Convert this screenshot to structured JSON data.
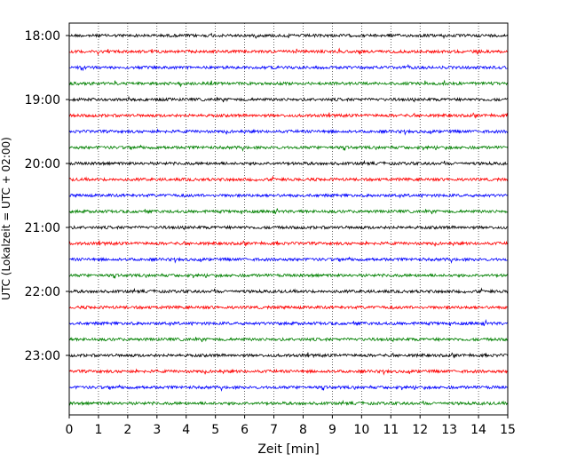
{
  "chart_data": {
    "type": "line",
    "title": "",
    "xlabel": "Zeit  [min]",
    "ylabel": "UTC (Lokalzeit = UTC + 02:00)",
    "xlim": [
      0,
      15
    ],
    "x_ticks": [
      "0",
      "1",
      "2",
      "3",
      "4",
      "5",
      "6",
      "7",
      "8",
      "9",
      "10",
      "11",
      "12",
      "13",
      "14",
      "15"
    ],
    "y_ticks": [
      "18:00",
      "19:00",
      "20:00",
      "21:00",
      "22:00",
      "23:00"
    ],
    "grid": "vertical-dotted",
    "trace_minutes": 15,
    "trace_colors": [
      "#000000",
      "#ff0000",
      "#0000ff",
      "#008000"
    ],
    "traces": [
      {
        "start": "18:00"
      },
      {
        "start": "18:15"
      },
      {
        "start": "18:30"
      },
      {
        "start": "18:45"
      },
      {
        "start": "19:00"
      },
      {
        "start": "19:15"
      },
      {
        "start": "19:30"
      },
      {
        "start": "19:45"
      },
      {
        "start": "20:00"
      },
      {
        "start": "20:15"
      },
      {
        "start": "20:30"
      },
      {
        "start": "20:45"
      },
      {
        "start": "21:00"
      },
      {
        "start": "21:15"
      },
      {
        "start": "21:30"
      },
      {
        "start": "21:45"
      },
      {
        "start": "22:00"
      },
      {
        "start": "22:15"
      },
      {
        "start": "22:30"
      },
      {
        "start": "22:45"
      },
      {
        "start": "23:00"
      },
      {
        "start": "23:15"
      },
      {
        "start": "23:30"
      },
      {
        "start": "23:45"
      }
    ]
  }
}
